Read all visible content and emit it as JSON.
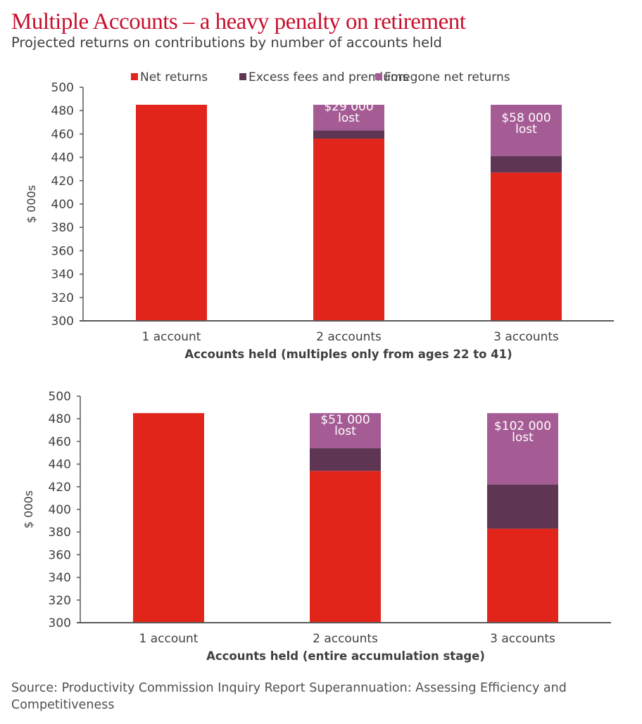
{
  "header": {
    "title": "Multiple Accounts – a heavy penalty on retirement",
    "subtitle": "Projected returns on contributions by number of accounts held"
  },
  "colors": {
    "title": "#C8102E",
    "net_returns": "#E1251B",
    "excess_fees": "#5E3653",
    "foregone": "#A55C94",
    "axis": "#595959",
    "text": "#404040"
  },
  "legend": {
    "items": [
      {
        "label": "Net returns",
        "color_key": "net_returns"
      },
      {
        "label": "Excess fees and premiums",
        "color_key": "excess_fees"
      },
      {
        "label": "Foregone net returns",
        "color_key": "foregone"
      }
    ]
  },
  "chart_data": [
    {
      "type": "bar",
      "stacked": true,
      "title": "",
      "xlabel": "Accounts held (multiples only from ages 22 to 41)",
      "ylabel": "$ 000s",
      "ylim": [
        300,
        500
      ],
      "yticks": [
        300,
        320,
        340,
        360,
        380,
        400,
        420,
        440,
        460,
        480,
        500
      ],
      "grid": false,
      "legend_position": "top",
      "categories": [
        "1 account",
        "2 accounts",
        "3 accounts"
      ],
      "series": [
        {
          "name": "Net returns",
          "values": [
            485,
            456,
            427
          ]
        },
        {
          "name": "Excess fees and premiums",
          "values": [
            0,
            7,
            14
          ]
        },
        {
          "name": "Foregone net returns",
          "values": [
            0,
            22,
            44
          ]
        }
      ],
      "annotations": [
        "",
        "$29 000\nlost",
        "$58 000\nlost"
      ]
    },
    {
      "type": "bar",
      "stacked": true,
      "title": "",
      "xlabel": "Accounts held (entire accumulation stage)",
      "ylabel": "$ 000s",
      "ylim": [
        300,
        500
      ],
      "yticks": [
        300,
        320,
        340,
        360,
        380,
        400,
        420,
        440,
        460,
        480,
        500
      ],
      "grid": false,
      "legend_position": "none",
      "categories": [
        "1 account",
        "2 accounts",
        "3 accounts"
      ],
      "series": [
        {
          "name": "Net returns",
          "values": [
            485,
            434,
            383
          ]
        },
        {
          "name": "Excess fees and premiums",
          "values": [
            0,
            20,
            39
          ]
        },
        {
          "name": "Foregone net returns",
          "values": [
            0,
            31,
            63
          ]
        }
      ],
      "annotations": [
        "",
        "$51 000\nlost",
        "$102 000\nlost"
      ]
    }
  ],
  "footer": {
    "source": "Source: Productivity Commission Inquiry Report Superannuation: Assessing Efficiency and Competitiveness"
  }
}
